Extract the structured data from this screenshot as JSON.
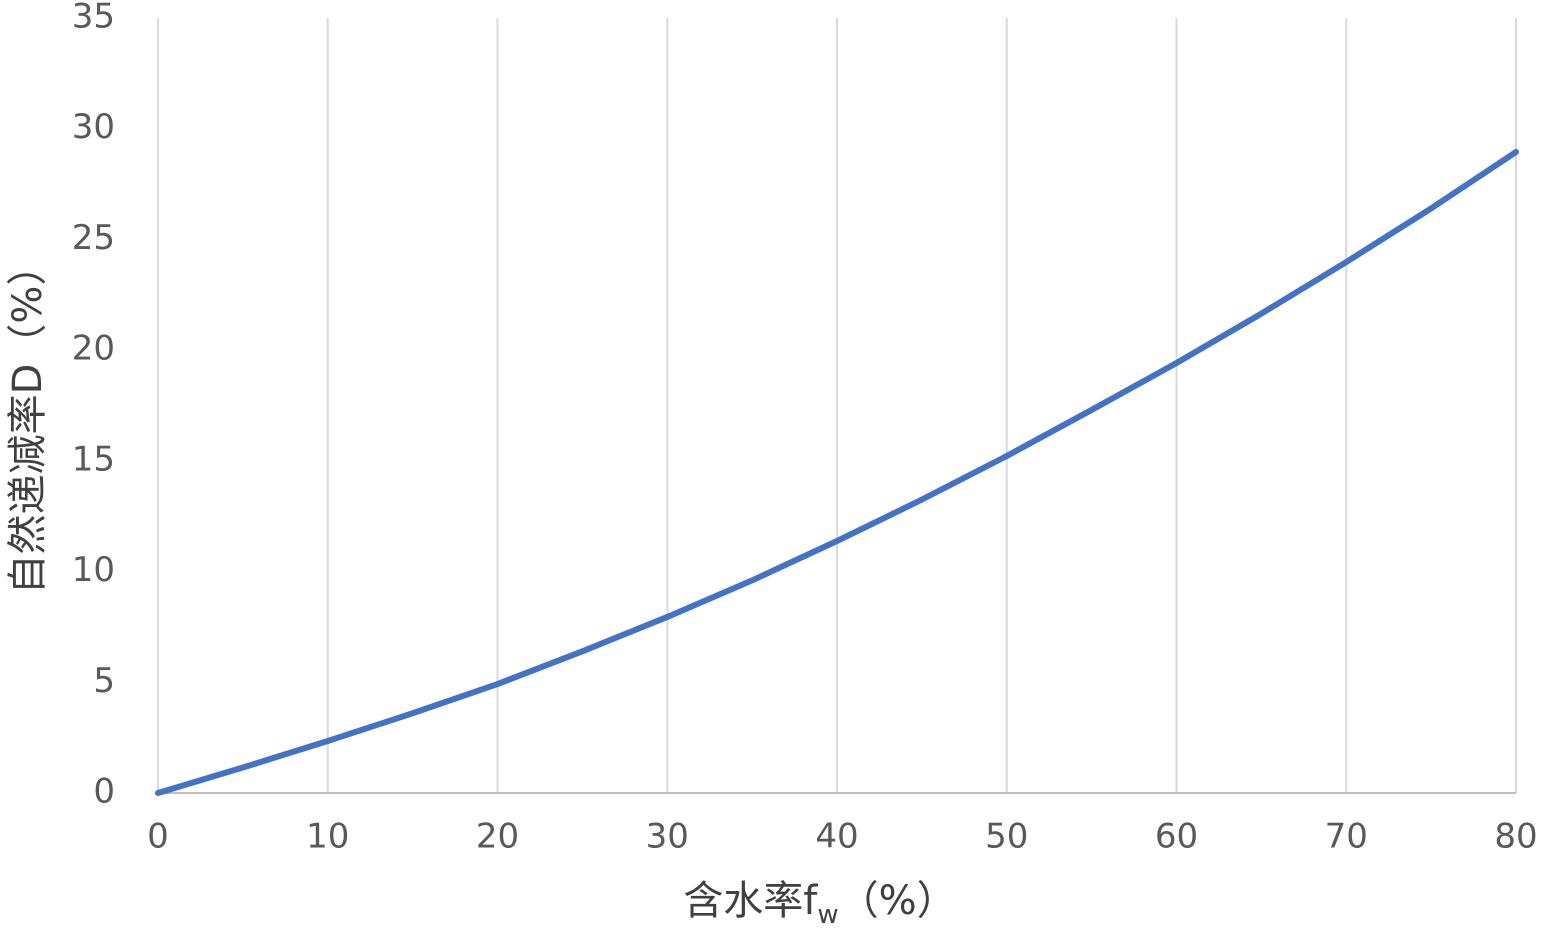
{
  "chart_data": {
    "type": "line",
    "x_label": {
      "main": "含水率f",
      "sub": "w",
      "unit": "（%）"
    },
    "y_label": "自然递减率D（%）",
    "x": [
      0,
      5,
      10,
      15,
      20,
      25,
      30,
      35,
      40,
      45,
      50,
      55,
      60,
      65,
      70,
      75,
      80
    ],
    "series": [
      {
        "name": "D",
        "color": "#4472c4",
        "values": [
          0,
          1.15,
          2.35,
          3.6,
          4.92,
          6.4,
          7.95,
          9.6,
          11.38,
          13.25,
          15.22,
          17.3,
          19.42,
          21.65,
          23.98,
          26.4,
          28.95
        ]
      }
    ],
    "xlim": [
      0,
      80
    ],
    "xticks": [
      0,
      10,
      20,
      30,
      40,
      50,
      60,
      70,
      80
    ],
    "ylim": [
      0,
      35
    ],
    "yticks": [
      0,
      5,
      10,
      15,
      20,
      25,
      30,
      35
    ],
    "grid": "x"
  }
}
